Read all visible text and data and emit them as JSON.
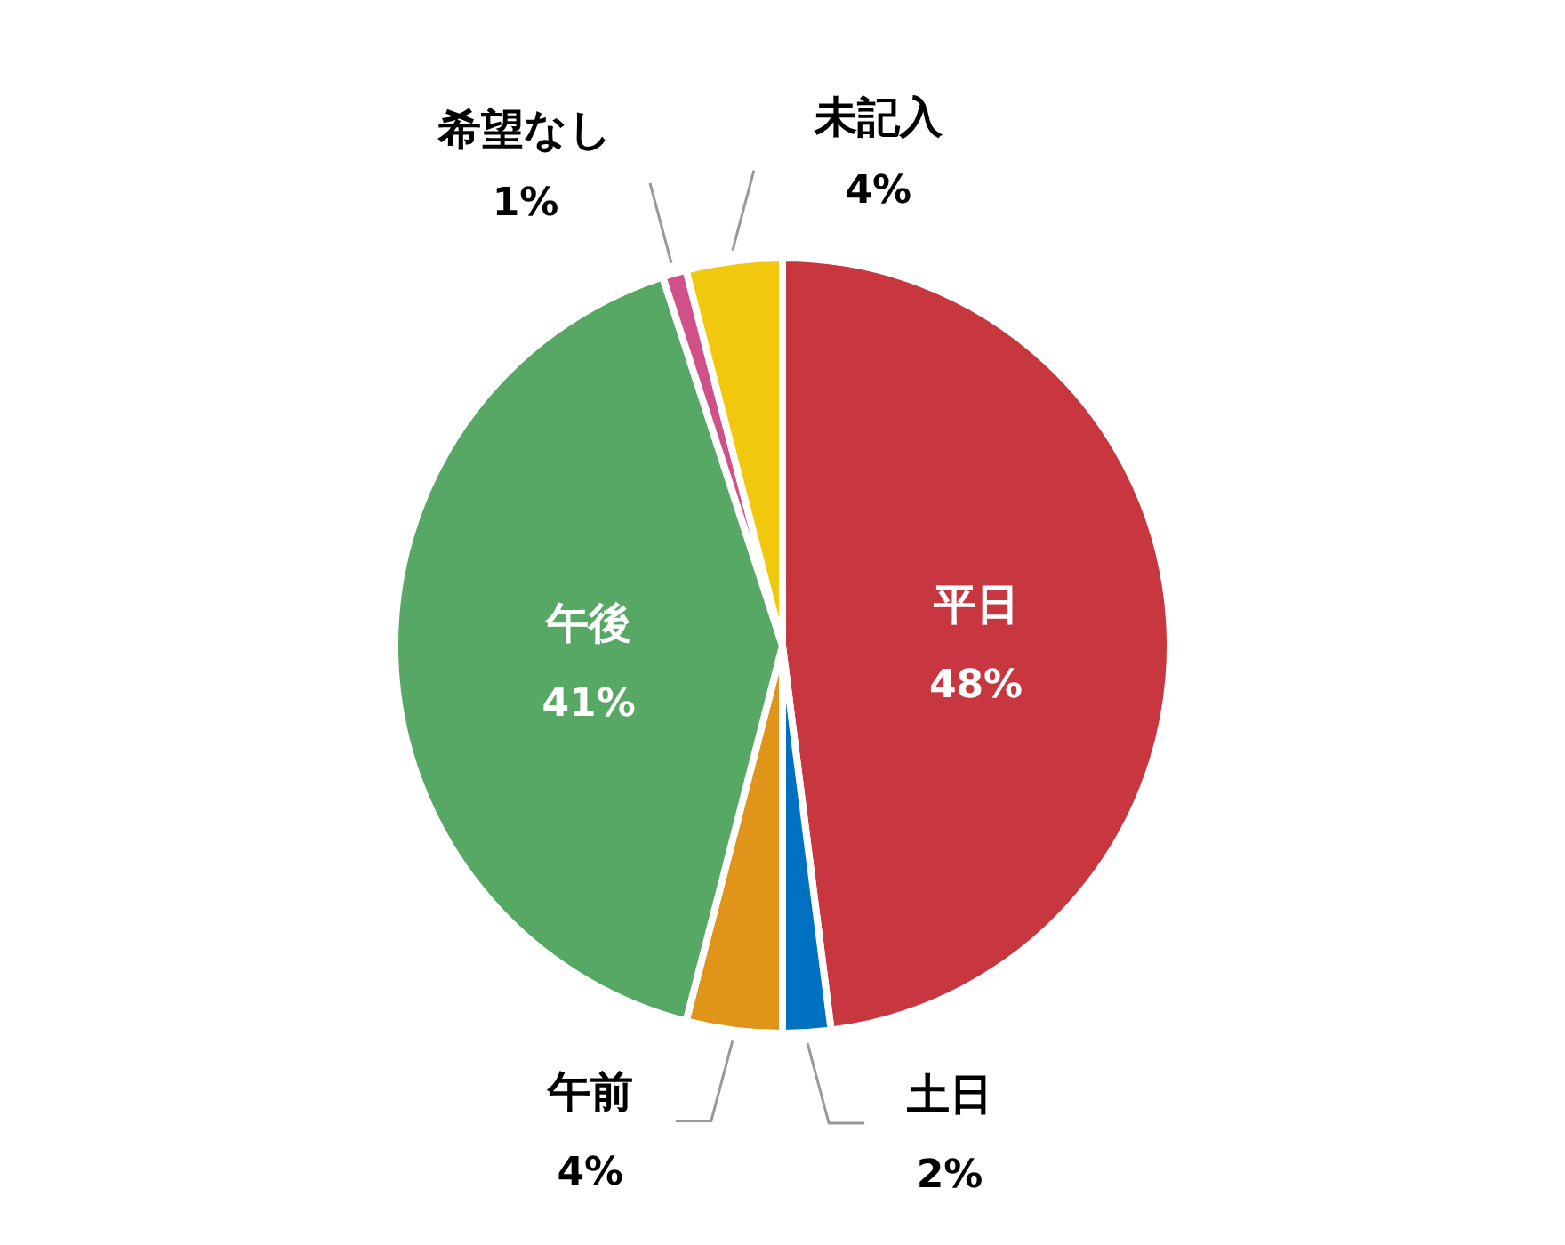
{
  "chart_data": {
    "type": "pie",
    "categories": [
      "平日",
      "土日",
      "午前",
      "午後",
      "希望なし",
      "未記入"
    ],
    "values": [
      48,
      2,
      4,
      41,
      1,
      4
    ],
    "value_labels": [
      "48%",
      "2%",
      "4%",
      "41%",
      "1%",
      "4%"
    ],
    "colors": [
      "#c8373f",
      "#0070c0",
      "#e0951a",
      "#57a865",
      "#d0508a",
      "#f2c80f"
    ]
  }
}
